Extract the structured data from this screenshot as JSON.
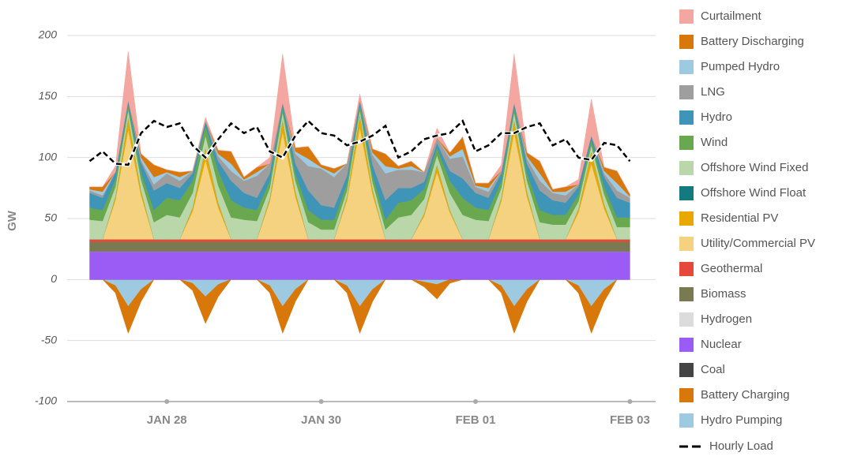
{
  "chart_data": {
    "type": "stacked_area",
    "y_label": "GW",
    "x": [
      0,
      4,
      8,
      12,
      16,
      20,
      24,
      28,
      32,
      36,
      40,
      44,
      48,
      52,
      56,
      60,
      64,
      68,
      72,
      76,
      80,
      84,
      88,
      92,
      96,
      100,
      104,
      108,
      112,
      116,
      120,
      124,
      128,
      132,
      136,
      140,
      144,
      148,
      152,
      156,
      160,
      164,
      168
    ],
    "xlim": [
      -7,
      176
    ],
    "xticks": [
      {
        "value": 24,
        "label": "JAN 28"
      },
      {
        "value": 72,
        "label": "JAN 30"
      },
      {
        "value": 120,
        "label": "FEB 01"
      },
      {
        "value": 168,
        "label": "FEB 03"
      }
    ],
    "ylim": [
      -100,
      200
    ],
    "yticks": [
      -100,
      -50,
      0,
      50,
      100,
      150,
      200
    ],
    "grid": true,
    "legend": "right",
    "series": [
      {
        "name": "Curtailment",
        "color": "#f4a6a0",
        "values": [
          0,
          0,
          5,
          40,
          0,
          0,
          0,
          0,
          0,
          3,
          0,
          0,
          0,
          0,
          5,
          40,
          0,
          0,
          0,
          0,
          0,
          5,
          0,
          0,
          0,
          0,
          0,
          8,
          0,
          0,
          0,
          0,
          5,
          40,
          0,
          0,
          0,
          0,
          4,
          30,
          0,
          0,
          0
        ]
      },
      {
        "name": "Battery Discharging",
        "color": "#d9780a",
        "values": [
          2,
          4,
          0,
          0,
          3,
          10,
          2,
          4,
          0,
          0,
          3,
          10,
          2,
          4,
          0,
          0,
          3,
          10,
          2,
          4,
          0,
          0,
          3,
          10,
          2,
          4,
          0,
          0,
          3,
          10,
          2,
          4,
          0,
          0,
          3,
          10,
          2,
          4,
          0,
          0,
          3,
          10,
          2
        ]
      },
      {
        "name": "Pumped Hydro",
        "color": "#9ecae1",
        "values": [
          1,
          3,
          0,
          0,
          2,
          6,
          1,
          3,
          0,
          0,
          2,
          6,
          1,
          3,
          0,
          0,
          2,
          6,
          1,
          3,
          0,
          0,
          2,
          6,
          1,
          3,
          0,
          0,
          2,
          6,
          1,
          3,
          0,
          0,
          2,
          6,
          1,
          3,
          0,
          0,
          2,
          6,
          1
        ]
      },
      {
        "name": "LNG",
        "color": "#9e9e9e",
        "values": [
          2,
          2,
          0,
          0,
          2,
          5,
          8,
          6,
          2,
          0,
          4,
          8,
          10,
          18,
          8,
          0,
          8,
          20,
          30,
          25,
          10,
          0,
          8,
          22,
          15,
          15,
          8,
          4,
          10,
          18,
          5,
          5,
          2,
          0,
          4,
          8,
          6,
          6,
          2,
          0,
          3,
          6,
          4
        ]
      },
      {
        "name": "Hydro",
        "color": "#3e95b8",
        "values": [
          12,
          10,
          6,
          4,
          8,
          16,
          12,
          10,
          6,
          4,
          8,
          16,
          12,
          10,
          6,
          4,
          8,
          16,
          12,
          10,
          6,
          4,
          8,
          16,
          12,
          10,
          6,
          4,
          8,
          16,
          12,
          10,
          6,
          4,
          8,
          16,
          12,
          10,
          6,
          4,
          8,
          16,
          12
        ]
      },
      {
        "name": "Wind",
        "color": "#6aa84f",
        "values": [
          10,
          9,
          6,
          4,
          6,
          10,
          14,
          14,
          10,
          8,
          12,
          14,
          10,
          9,
          6,
          4,
          6,
          10,
          8,
          8,
          6,
          4,
          6,
          8,
          12,
          12,
          8,
          6,
          10,
          14,
          10,
          9,
          6,
          4,
          6,
          10,
          8,
          8,
          6,
          4,
          6,
          8,
          8
        ]
      },
      {
        "name": "Offshore Wind Fixed",
        "color": "#b9d7a8",
        "values": [
          16,
          15,
          8,
          6,
          9,
          14,
          20,
          18,
          12,
          10,
          14,
          18,
          16,
          15,
          8,
          6,
          9,
          14,
          8,
          8,
          5,
          4,
          6,
          8,
          18,
          20,
          12,
          8,
          14,
          20,
          16,
          15,
          8,
          6,
          9,
          14,
          12,
          12,
          6,
          5,
          8,
          10,
          10
        ]
      },
      {
        "name": "Offshore Wind Float",
        "color": "#137a7f",
        "values": [
          0,
          0,
          0,
          0,
          0,
          0,
          0,
          0,
          0,
          0,
          0,
          0,
          0,
          0,
          0,
          0,
          0,
          0,
          0,
          0,
          0,
          0,
          0,
          0,
          0,
          0,
          0,
          0,
          0,
          0,
          0,
          0,
          0,
          0,
          0,
          0,
          0,
          0,
          0,
          0,
          0,
          0,
          0
        ]
      },
      {
        "name": "Residential PV",
        "color": "#e8a800",
        "values": [
          0,
          0,
          3,
          10,
          4,
          0,
          0,
          0,
          3,
          10,
          4,
          0,
          0,
          0,
          3,
          10,
          4,
          0,
          0,
          0,
          3,
          10,
          4,
          0,
          0,
          0,
          2,
          6,
          2,
          0,
          0,
          0,
          3,
          10,
          4,
          0,
          0,
          0,
          3,
          10,
          4,
          0,
          0
        ]
      },
      {
        "name": "Utility/Commercial PV",
        "color": "#f5d27f",
        "values": [
          0,
          0,
          32,
          90,
          36,
          0,
          0,
          0,
          23,
          65,
          26,
          0,
          0,
          0,
          31,
          88,
          35,
          0,
          0,
          0,
          32,
          92,
          37,
          0,
          0,
          0,
          19,
          55,
          22,
          0,
          0,
          0,
          31,
          88,
          35,
          0,
          0,
          0,
          22,
          62,
          25,
          0,
          0
        ]
      },
      {
        "name": "Geothermal",
        "color": "#e6493a",
        "values": [
          2,
          2,
          2,
          2,
          2,
          2,
          2,
          2,
          2,
          2,
          2,
          2,
          2,
          2,
          2,
          2,
          2,
          2,
          2,
          2,
          2,
          2,
          2,
          2,
          2,
          2,
          2,
          2,
          2,
          2,
          2,
          2,
          2,
          2,
          2,
          2,
          2,
          2,
          2,
          2,
          2,
          2,
          2
        ]
      },
      {
        "name": "Biomass",
        "color": "#7a7a52",
        "values": [
          8,
          8,
          8,
          8,
          8,
          8,
          8,
          8,
          8,
          8,
          8,
          8,
          8,
          8,
          8,
          8,
          8,
          8,
          8,
          8,
          8,
          8,
          8,
          8,
          8,
          8,
          8,
          8,
          8,
          8,
          8,
          8,
          8,
          8,
          8,
          8,
          8,
          8,
          8,
          8,
          8,
          8,
          8
        ]
      },
      {
        "name": "Hydrogen",
        "color": "#dcdcdc",
        "values": [
          0,
          0,
          0,
          0,
          0,
          0,
          0,
          0,
          0,
          0,
          0,
          0,
          0,
          0,
          0,
          0,
          0,
          0,
          0,
          0,
          0,
          0,
          0,
          0,
          0,
          0,
          0,
          0,
          0,
          0,
          0,
          0,
          0,
          0,
          0,
          0,
          0,
          0,
          0,
          0,
          0,
          0,
          0
        ]
      },
      {
        "name": "Nuclear",
        "color": "#9b5cf6",
        "values": [
          23,
          23,
          23,
          23,
          23,
          23,
          23,
          23,
          23,
          23,
          23,
          23,
          23,
          23,
          23,
          23,
          23,
          23,
          23,
          23,
          23,
          23,
          23,
          23,
          23,
          23,
          23,
          23,
          23,
          23,
          23,
          23,
          23,
          23,
          23,
          23,
          23,
          23,
          23,
          23,
          23,
          23,
          23
        ]
      },
      {
        "name": "Coal",
        "color": "#444444",
        "values": [
          0,
          0,
          0,
          0,
          0,
          0,
          0,
          0,
          0,
          0,
          0,
          0,
          0,
          0,
          0,
          0,
          0,
          0,
          0,
          0,
          0,
          0,
          0,
          0,
          0,
          0,
          0,
          0,
          0,
          0,
          0,
          0,
          0,
          0,
          0,
          0,
          0,
          0,
          0,
          0,
          0,
          0,
          0
        ]
      },
      {
        "name": "Battery Charging",
        "color": "#d9780a",
        "values": [
          0,
          0,
          -6,
          -22,
          -10,
          0,
          0,
          0,
          -6,
          -22,
          -10,
          0,
          0,
          0,
          -6,
          -22,
          -10,
          0,
          0,
          0,
          -6,
          -22,
          -10,
          0,
          0,
          0,
          -4,
          -12,
          -3,
          0,
          0,
          0,
          -6,
          -22,
          -10,
          0,
          0,
          0,
          -6,
          -22,
          -10,
          0,
          0
        ]
      },
      {
        "name": "Hydro Pumping",
        "color": "#9ecae1",
        "values": [
          0,
          0,
          -5,
          -22,
          -8,
          0,
          0,
          0,
          -3,
          -14,
          -4,
          0,
          0,
          0,
          -5,
          -22,
          -8,
          0,
          0,
          0,
          -5,
          -22,
          -8,
          0,
          0,
          0,
          -2,
          -4,
          0,
          0,
          0,
          0,
          -5,
          -22,
          -8,
          0,
          0,
          0,
          -5,
          -22,
          -8,
          0,
          0
        ]
      }
    ],
    "load": {
      "name": "Hourly Load",
      "color": "#000000",
      "values": [
        97,
        105,
        95,
        94,
        120,
        130,
        125,
        128,
        110,
        100,
        115,
        128,
        120,
        125,
        105,
        100,
        118,
        130,
        120,
        118,
        110,
        113,
        118,
        126,
        100,
        105,
        115,
        118,
        120,
        130,
        105,
        110,
        120,
        120,
        125,
        128,
        110,
        115,
        100,
        98,
        112,
        110,
        97
      ]
    }
  }
}
